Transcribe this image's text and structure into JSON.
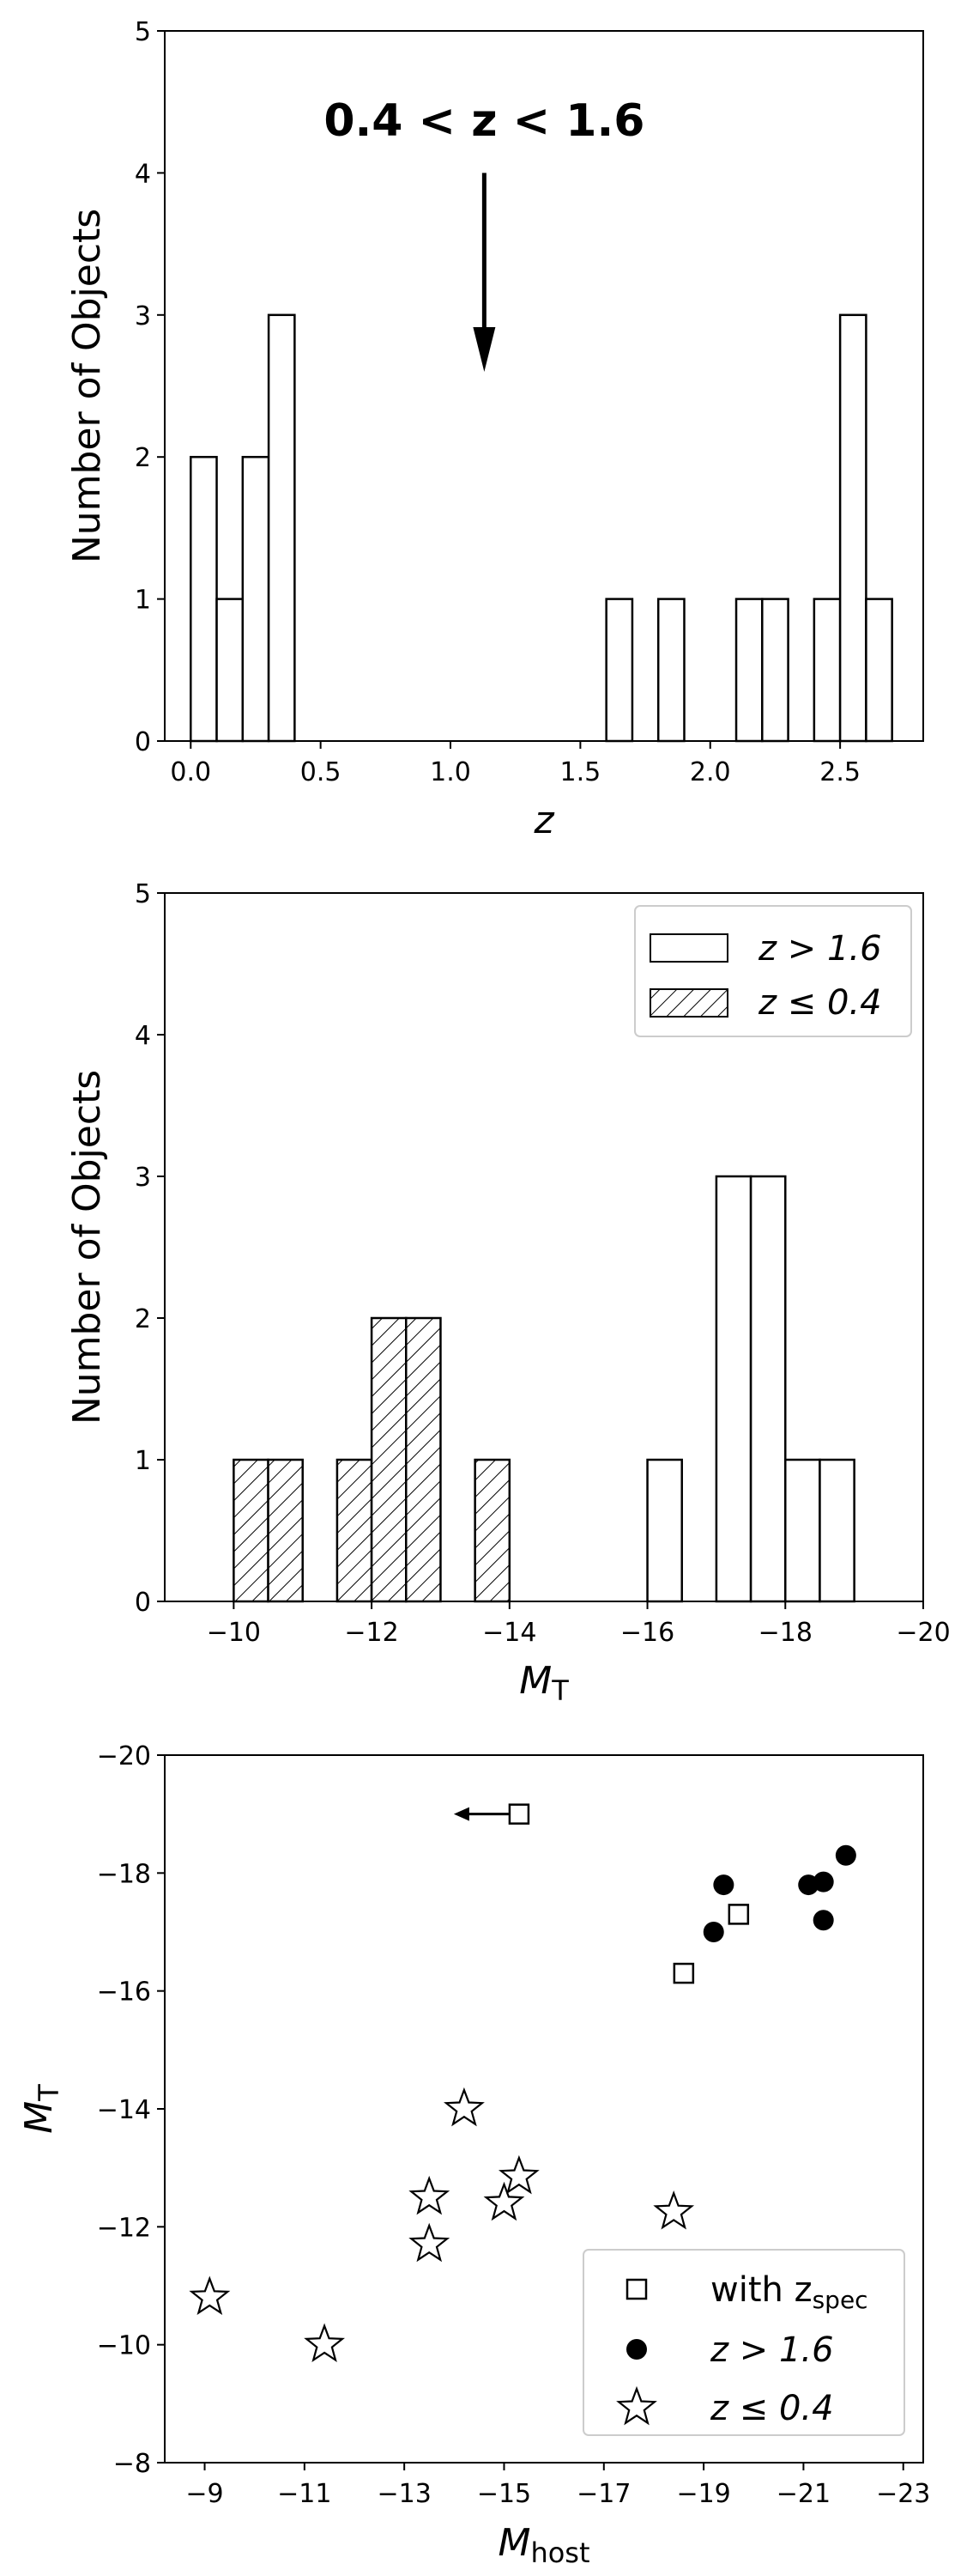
{
  "chart_data": [
    {
      "type": "bar",
      "panel": "redshift-histogram",
      "xlabel": "z",
      "ylabel": "Number of Objects",
      "xlim": [
        -0.1,
        2.82
      ],
      "ylim": [
        0,
        5
      ],
      "xticks": [
        "0.0",
        "0.5",
        "1.0",
        "1.5",
        "2.0",
        "2.5"
      ],
      "yticks": [
        "0",
        "1",
        "2",
        "3",
        "4",
        "5"
      ],
      "bin_width": 0.1,
      "bins": [
        {
          "x0": 0.0,
          "count": 2
        },
        {
          "x0": 0.1,
          "count": 1
        },
        {
          "x0": 0.2,
          "count": 2
        },
        {
          "x0": 0.3,
          "count": 3
        },
        {
          "x0": 1.6,
          "count": 1
        },
        {
          "x0": 1.8,
          "count": 1
        },
        {
          "x0": 2.1,
          "count": 1
        },
        {
          "x0": 2.2,
          "count": 1
        },
        {
          "x0": 2.4,
          "count": 1
        },
        {
          "x0": 2.5,
          "count": 3
        },
        {
          "x0": 2.6,
          "count": 1
        }
      ],
      "annotation": {
        "text": "0.4 < z < 1.6",
        "arrow_x": 1.13,
        "arrow_from_y": 4.0,
        "arrow_to_y": 2.6
      }
    },
    {
      "type": "bar",
      "panel": "magnitude-histogram",
      "xlabel": "M_T",
      "ylabel": "Number of Objects",
      "xlim": [
        -9,
        -20
      ],
      "ylim": [
        0,
        5
      ],
      "xticks": [
        "−10",
        "−12",
        "−14",
        "−16",
        "−18",
        "−20"
      ],
      "yticks": [
        "0",
        "1",
        "2",
        "3",
        "4",
        "5"
      ],
      "bin_width": 0.5,
      "legend_position": "top-right",
      "series": [
        {
          "name": "z > 1.6",
          "hatch": false,
          "bins": [
            {
              "x0": -16.0,
              "count": 1
            },
            {
              "x0": -17.0,
              "count": 3
            },
            {
              "x0": -17.5,
              "count": 3
            },
            {
              "x0": -18.0,
              "count": 1
            },
            {
              "x0": -18.5,
              "count": 1
            }
          ]
        },
        {
          "name": "z ≤ 0.4",
          "hatch": true,
          "bins": [
            {
              "x0": -10.0,
              "count": 1
            },
            {
              "x0": -10.5,
              "count": 1
            },
            {
              "x0": -11.5,
              "count": 1
            },
            {
              "x0": -12.0,
              "count": 2
            },
            {
              "x0": -12.5,
              "count": 2
            },
            {
              "x0": -13.5,
              "count": 1
            }
          ]
        }
      ]
    },
    {
      "type": "scatter",
      "panel": "host-vs-magnitude",
      "xlabel": "M_host",
      "ylabel": "M_T",
      "xlim": [
        -8.2,
        -23.4
      ],
      "ylim": [
        -8,
        -20
      ],
      "xticks": [
        "−9",
        "−11",
        "−13",
        "−15",
        "−17",
        "−19",
        "−21",
        "−23"
      ],
      "yticks": [
        "−8",
        "−10",
        "−12",
        "−14",
        "−16",
        "−18",
        "−20"
      ],
      "legend_position": "bottom-right",
      "series": [
        {
          "name": "with z_spec",
          "marker": "square",
          "points": [
            {
              "x": -15.3,
              "y": -19.0,
              "upper_limit": true
            },
            {
              "x": -19.7,
              "y": -17.3
            },
            {
              "x": -18.6,
              "y": -16.3
            }
          ]
        },
        {
          "name": "z > 1.6",
          "marker": "circle",
          "points": [
            {
              "x": -19.4,
              "y": -17.8
            },
            {
              "x": -19.2,
              "y": -17.0
            },
            {
              "x": -21.1,
              "y": -17.8
            },
            {
              "x": -21.4,
              "y": -17.85
            },
            {
              "x": -21.85,
              "y": -18.3
            },
            {
              "x": -21.4,
              "y": -17.2
            }
          ]
        },
        {
          "name": "z ≤ 0.4",
          "marker": "star",
          "points": [
            {
              "x": -9.1,
              "y": -10.8
            },
            {
              "x": -11.4,
              "y": -10.0
            },
            {
              "x": -13.5,
              "y": -11.7
            },
            {
              "x": -13.5,
              "y": -12.5
            },
            {
              "x": -14.2,
              "y": -14.0
            },
            {
              "x": -15.0,
              "y": -12.4
            },
            {
              "x": -15.3,
              "y": -12.85
            },
            {
              "x": -18.4,
              "y": -12.25
            }
          ]
        }
      ]
    }
  ],
  "text": {
    "p1_xlabel": "z",
    "p1_ylabel": "Number of Objects",
    "p1_annotation": "0.4 < z < 1.6",
    "p2_xlabel_main": "M",
    "p2_xlabel_sub": "T",
    "p2_ylabel": "Number of Objects",
    "p2_legend_1": "z > 1.6",
    "p2_legend_2": "z ≤ 0.4",
    "p3_xlabel_main": "M",
    "p3_xlabel_sub": "host",
    "p3_ylabel_main": "M",
    "p3_ylabel_sub": "T",
    "p3_legend_1_main": "with z",
    "p3_legend_1_sub": "spec",
    "p3_legend_2": "z > 1.6",
    "p3_legend_3": "z ≤ 0.4"
  },
  "colors": {
    "line": "#000000",
    "fill": "#ffffff",
    "marker": "#000000"
  }
}
